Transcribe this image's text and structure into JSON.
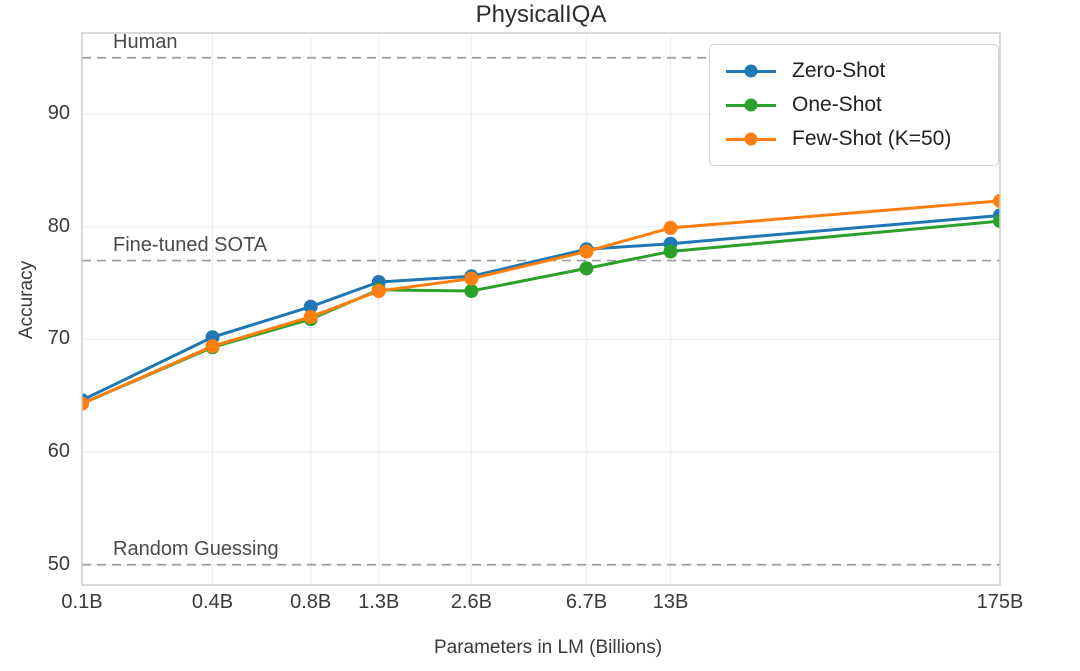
{
  "chart_data": {
    "type": "line",
    "title": "PhysicalIQA",
    "xlabel": "Parameters in LM (Billions)",
    "ylabel": "Accuracy",
    "x_scale": "log",
    "x": [
      0.125,
      0.35,
      0.76,
      1.3,
      2.7,
      6.7,
      13,
      175
    ],
    "x_tick_labels": [
      "0.1B",
      "0.4B",
      "0.8B",
      "1.3B",
      "2.6B",
      "6.7B",
      "13B",
      "175B"
    ],
    "xlim": [
      0.125,
      175
    ],
    "y_ticks": [
      50,
      60,
      70,
      80,
      90
    ],
    "ylim": [
      48.2,
      97.2
    ],
    "grid": true,
    "legend_position": "upper right",
    "series": [
      {
        "name": "Zero-Shot",
        "color": "#1f77b4",
        "values": [
          64.6,
          70.2,
          72.9,
          75.1,
          75.6,
          78.0,
          78.5,
          81.0
        ]
      },
      {
        "name": "One-Shot",
        "color": "#2ca02c",
        "values": [
          64.3,
          69.3,
          71.8,
          74.4,
          74.3,
          76.3,
          77.8,
          80.5
        ]
      },
      {
        "name": "Few-Shot (K=50)",
        "color": "#ff7f0e",
        "values": [
          64.3,
          69.4,
          72.0,
          74.3,
          75.4,
          77.8,
          79.9,
          82.3
        ]
      }
    ],
    "reference_lines": [
      {
        "label": "Human",
        "value": 95
      },
      {
        "label": "Fine-tuned SOTA",
        "value": 77
      },
      {
        "label": "Random Guessing",
        "value": 50
      }
    ],
    "style": {
      "reference_line_color": "#9c9c9c",
      "grid_color": "#eef0f3",
      "spine_color": "#cdcdcd"
    }
  }
}
